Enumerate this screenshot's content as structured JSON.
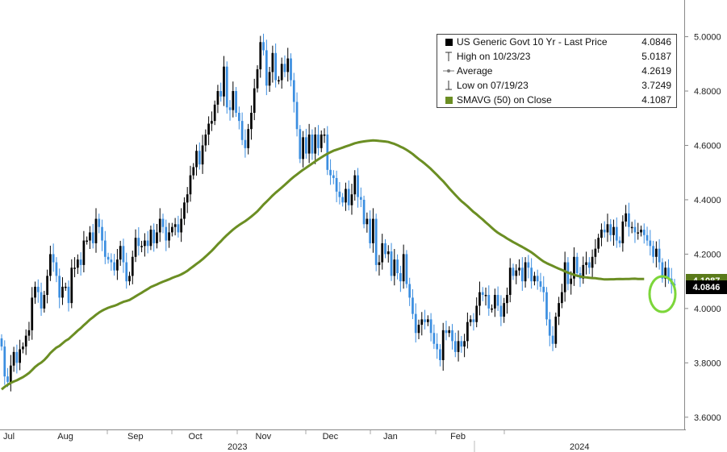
{
  "chart_data": {
    "type": "candlestick",
    "ylim": [
      3.6,
      5.0
    ],
    "yticks": [
      "3.6000",
      "3.8000",
      "4.0000",
      "4.2000",
      "4.4000",
      "4.6000",
      "4.8000",
      "5.0000"
    ],
    "xticks": [
      "Jul",
      "Aug",
      "Sep",
      "Oct",
      "Nov",
      "Dec",
      "Jan",
      "Feb"
    ],
    "year_labels": [
      "2023",
      "2024"
    ],
    "legend": [
      {
        "symbol": "black-square",
        "label": "US Generic Govt 10 Yr - Last Price",
        "value": "4.0846"
      },
      {
        "symbol": "high-icon",
        "label": "High on 10/23/23",
        "value": "5.0187"
      },
      {
        "symbol": "average-icon",
        "label": "Average",
        "value": "4.2619"
      },
      {
        "symbol": "low-icon",
        "label": "Low on 07/19/23",
        "value": "3.7249"
      },
      {
        "symbol": "green-square",
        "label": "SMAVG (50)  on Close",
        "value": "4.1087"
      }
    ],
    "last_price_label": "4.0846",
    "sma_label": "4.1087",
    "colors": {
      "up": "#000000",
      "down": "#3b8ee0",
      "sma": "#6b8e23",
      "highlight": "#7cd63a"
    },
    "price_close": [
      3.86,
      3.75,
      3.73,
      3.79,
      3.84,
      3.8,
      3.85,
      3.86,
      3.9,
      3.92,
      4.04,
      4.08,
      4.06,
      4.0,
      4.05,
      4.12,
      4.2,
      4.17,
      4.12,
      4.04,
      4.08,
      4.08,
      4.02,
      4.15,
      4.15,
      4.18,
      4.16,
      4.25,
      4.25,
      4.28,
      4.24,
      4.33,
      4.3,
      4.25,
      4.19,
      4.18,
      4.17,
      4.14,
      4.18,
      4.23,
      4.17,
      4.1,
      4.12,
      4.19,
      4.26,
      4.23,
      4.23,
      4.25,
      4.23,
      4.29,
      4.24,
      4.28,
      4.33,
      4.3,
      4.25,
      4.28,
      4.3,
      4.31,
      4.28,
      4.33,
      4.39,
      4.42,
      4.49,
      4.52,
      4.58,
      4.53,
      4.6,
      4.64,
      4.68,
      4.69,
      4.75,
      4.8,
      4.78,
      4.89,
      4.74,
      4.73,
      4.8,
      4.72,
      4.69,
      4.62,
      4.59,
      4.66,
      4.72,
      4.81,
      4.88,
      4.98,
      4.95,
      4.82,
      4.87,
      4.94,
      4.84,
      4.84,
      4.9,
      4.87,
      4.92,
      4.84,
      4.76,
      4.66,
      4.55,
      4.63,
      4.57,
      4.64,
      4.57,
      4.64,
      4.59,
      4.64,
      4.64,
      4.51,
      4.49,
      4.48,
      4.43,
      4.41,
      4.39,
      4.44,
      4.38,
      4.42,
      4.49,
      4.41,
      4.4,
      4.31,
      4.33,
      4.24,
      4.33,
      4.16,
      4.17,
      4.24,
      4.2,
      4.21,
      4.12,
      4.18,
      4.13,
      4.1,
      4.2,
      4.09,
      4.04,
      3.98,
      3.91,
      3.94,
      3.96,
      3.95,
      3.96,
      3.91,
      3.87,
      3.85,
      3.81,
      3.92,
      3.91,
      3.92,
      3.88,
      3.84,
      3.88,
      3.86,
      3.88,
      3.95,
      3.96,
      3.95,
      4.01,
      4.06,
      4.05,
      4.05,
      4.0,
      4.0,
      4.05,
      4.01,
      3.97,
      4.02,
      4.05,
      4.15,
      4.12,
      4.14,
      4.15,
      4.1,
      4.17,
      4.15,
      4.1,
      4.12,
      4.1,
      4.08,
      4.06,
      3.96,
      3.9,
      3.87,
      3.97,
      4.02,
      4.06,
      4.17,
      4.09,
      4.11,
      4.19,
      4.13,
      4.11,
      4.16,
      4.17,
      4.15,
      4.19,
      4.22,
      4.26,
      4.29,
      4.28,
      4.31,
      4.27,
      4.3,
      4.25,
      4.24,
      4.32,
      4.35,
      4.3,
      4.3,
      4.28,
      4.28,
      4.29,
      4.27,
      4.25,
      4.23,
      4.19,
      4.22,
      4.17,
      4.11,
      4.15,
      4.11,
      4.09,
      4.0846
    ],
    "sma_50": [
      3.7022,
      3.7118,
      3.7192,
      3.7262,
      3.7315,
      3.7358,
      3.7419,
      3.7474,
      3.7549,
      3.7629,
      3.7736,
      3.785,
      3.794,
      3.8009,
      3.8103,
      3.8224,
      3.8359,
      3.8468,
      3.8563,
      3.8625,
      3.8719,
      3.8811,
      3.8877,
      3.898,
      3.9081,
      3.9183,
      3.9275,
      3.9386,
      3.9486,
      3.959,
      3.9676,
      3.9768,
      3.985,
      3.992,
      3.9975,
      4.0025,
      4.0064,
      4.0096,
      4.0141,
      4.0199,
      4.0246,
      4.0274,
      4.0314,
      4.0378,
      4.0448,
      4.0514,
      4.0581,
      4.0651,
      4.0717,
      4.0791,
      4.0839,
      4.0885,
      4.0939,
      4.0986,
      4.1027,
      4.1074,
      4.1122,
      4.1168,
      4.1207,
      4.1257,
      4.1316,
      4.1383,
      4.1472,
      4.1552,
      4.164,
      4.1721,
      4.1814,
      4.1912,
      4.2014,
      4.2123,
      4.2242,
      4.2362,
      4.2472,
      4.2594,
      4.2703,
      4.2802,
      4.2903,
      4.2992,
      4.3071,
      4.3143,
      4.3213,
      4.3295,
      4.3383,
      4.3476,
      4.3575,
      4.3699,
      4.382,
      4.393,
      4.4042,
      4.4158,
      4.4258,
      4.4353,
      4.4453,
      4.4549,
      4.4652,
      4.4753,
      4.4848,
      4.4936,
      4.5017,
      4.5103,
      4.5178,
      4.5255,
      4.5331,
      4.5412,
      4.5487,
      4.5557,
      4.5629,
      4.5693,
      4.5749,
      4.5804,
      4.5843,
      4.5882,
      4.592,
      4.5962,
      4.5997,
      4.6037,
      4.6078,
      4.6106,
      4.6131,
      4.6148,
      4.6162,
      4.6173,
      4.6186,
      4.6178,
      4.6164,
      4.6157,
      4.6146,
      4.6127,
      4.6091,
      4.6055,
      4.6007,
      4.5951,
      4.5903,
      4.5837,
      4.5762,
      4.5683,
      4.5589,
      4.5498,
      4.5416,
      4.5327,
      4.5232,
      4.5131,
      4.5017,
      4.4911,
      4.4792,
      4.4683,
      4.4556,
      4.4426,
      4.4302,
      4.418,
      4.4061,
      4.3951,
      4.3858,
      4.3762,
      4.3654,
      4.3551,
      4.3464,
      4.3364,
      4.3273,
      4.3169,
      4.3071,
      4.297,
      4.2871,
      4.2787,
      4.2716,
      4.2649,
      4.2576,
      4.2509,
      4.2445,
      4.2386,
      4.2325,
      4.2263,
      4.22,
      4.2133,
      4.2067,
      4.1983,
      4.1895,
      4.1808,
      4.1728,
      4.1668,
      4.1616,
      4.1568,
      4.1513,
      4.1463,
      4.1418,
      4.1369,
      4.1318,
      4.1281,
      4.1239,
      4.1207,
      4.1178,
      4.1158,
      4.1144,
      4.1133,
      4.1119,
      4.1114,
      4.1096,
      4.1083,
      4.1071,
      4.107,
      4.1077,
      4.1077,
      4.1081,
      4.1085,
      4.1082,
      4.1083,
      4.1087,
      4.1092,
      4.1095,
      4.1087,
      4.1086,
      4.1087
    ]
  }
}
